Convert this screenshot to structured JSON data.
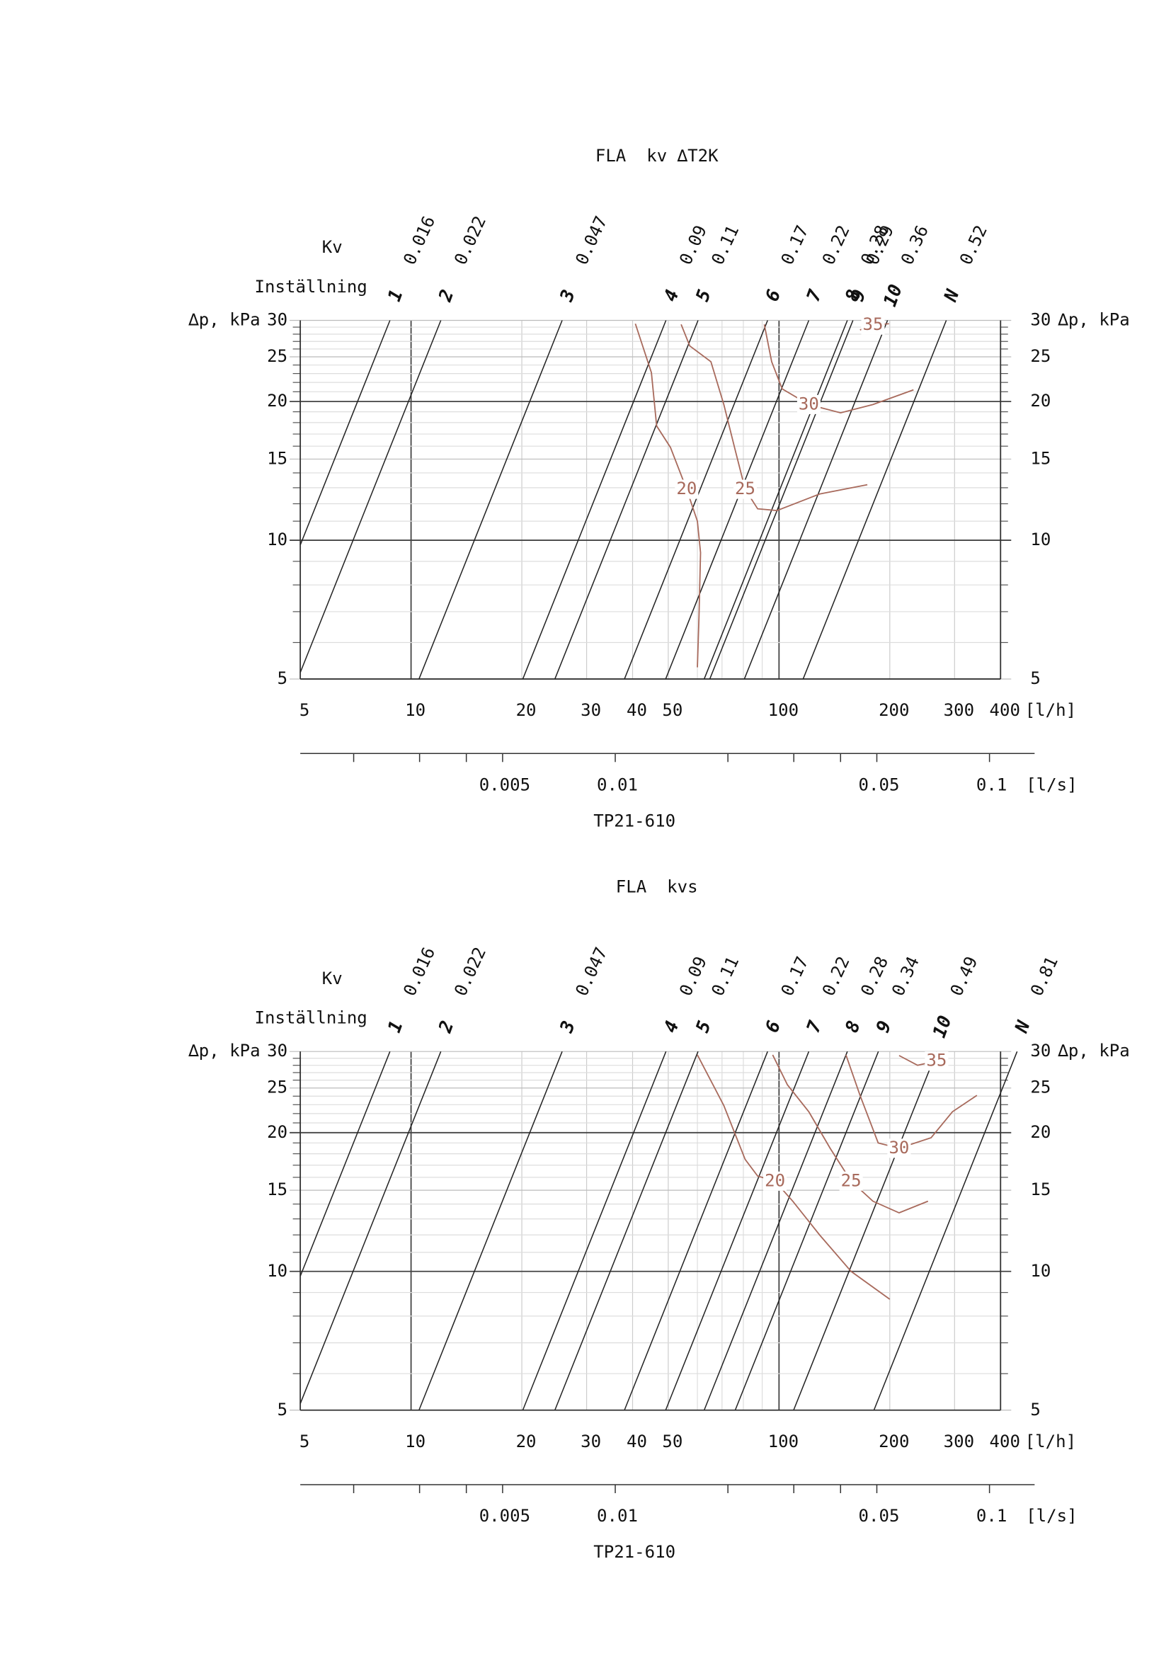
{
  "chart_data": [
    {
      "type": "nomogram",
      "title": "FLA  kv ∆T2K",
      "kv_label": "Kv",
      "setting_label": "Inställning",
      "kv": [
        0.016,
        0.022,
        0.047,
        0.09,
        0.11,
        0.17,
        0.22,
        0.28,
        0.29,
        0.36,
        0.52
      ],
      "settings": [
        1,
        2,
        3,
        4,
        5,
        6,
        7,
        8,
        9,
        10,
        "N"
      ],
      "y_label": "∆p, kPa",
      "log_scale": true,
      "xlim": [
        5,
        400
      ],
      "xticks": [
        5,
        10,
        20,
        30,
        40,
        50,
        100,
        200,
        300,
        400
      ],
      "xminor": [
        60,
        70,
        80,
        90
      ],
      "x_major_grid": [
        10,
        100
      ],
      "x_unit": "[l/h]",
      "ylim": [
        5,
        30
      ],
      "yticks": [
        5,
        10,
        15,
        20,
        25,
        30
      ],
      "yminor": [
        6,
        7,
        8,
        9,
        11,
        12,
        13,
        14,
        16,
        17,
        18,
        19,
        21,
        22,
        23,
        24,
        26,
        27,
        28,
        29
      ],
      "y_major_grid": [
        10,
        20
      ],
      "x2lim": [
        0.00144,
        0.132
      ],
      "x2ticks": [
        0.005,
        0.01,
        0.05,
        0.1
      ],
      "x2minor": [
        0.002,
        0.003,
        0.004,
        0.02,
        0.03,
        0.04
      ],
      "x2_unit": "[l/s]",
      "footer": "TP21-610",
      "line_color": "#222222",
      "curve_color": "#a86a5c",
      "series": [
        {
          "name": "20",
          "x": [
            40.7,
            45.0,
            46.5,
            50.7,
            56.1,
            60.0,
            61.2,
            60.6,
            60.0
          ],
          "values": [
            29.5,
            23.1,
            17.7,
            15.9,
            12.9,
            11.0,
            9.4,
            6.8,
            5.3
          ]
        },
        {
          "name": "25",
          "x": [
            54.2,
            57.2,
            65.3,
            70.8,
            75.7,
            80.9,
            87.5,
            98.8,
            128.9,
            173.8
          ],
          "values": [
            29.4,
            26.4,
            24.4,
            19.7,
            15.9,
            12.9,
            11.7,
            11.6,
            12.6,
            13.2
          ]
        },
        {
          "name": "30",
          "x": [
            91.2,
            95.5,
            102,
            120.5,
            147,
            180,
            232
          ],
          "values": [
            29.4,
            24.4,
            21.3,
            19.7,
            18.9,
            19.7,
            21.2
          ]
        },
        {
          "name": "35",
          "x": [
            166,
            180,
            199
          ],
          "values": [
            28.6,
            29.3,
            29.5
          ]
        }
      ]
    },
    {
      "type": "nomogram",
      "title": "FLA  kvs",
      "kv_label": "Kv",
      "setting_label": "Inställning",
      "kv": [
        0.016,
        0.022,
        0.047,
        0.09,
        0.11,
        0.17,
        0.22,
        0.28,
        0.34,
        0.49,
        0.81
      ],
      "settings": [
        1,
        2,
        3,
        4,
        5,
        6,
        7,
        8,
        9,
        10,
        "N"
      ],
      "y_label": "∆p, kPa",
      "log_scale": true,
      "xlim": [
        5,
        400
      ],
      "xticks": [
        5,
        10,
        20,
        30,
        40,
        50,
        100,
        200,
        300,
        400
      ],
      "xminor": [
        60,
        70,
        80,
        90
      ],
      "x_major_grid": [
        10,
        100
      ],
      "x_unit": "[l/h]",
      "ylim": [
        5,
        30
      ],
      "yticks": [
        5,
        10,
        15,
        20,
        25,
        30
      ],
      "yminor": [
        6,
        7,
        8,
        9,
        11,
        12,
        13,
        14,
        16,
        17,
        18,
        19,
        21,
        22,
        23,
        24,
        26,
        27,
        28,
        29
      ],
      "y_major_grid": [
        10,
        20
      ],
      "x2lim": [
        0.00144,
        0.132
      ],
      "x2ticks": [
        0.005,
        0.01,
        0.05,
        0.1
      ],
      "x2minor": [
        0.002,
        0.003,
        0.004,
        0.02,
        0.03,
        0.04
      ],
      "x2_unit": "[l/s]",
      "footer": "TP21-610",
      "line_color": "#222222",
      "curve_color": "#a86a5c",
      "series": [
        {
          "name": "20",
          "x": [
            60.0,
            70.8,
            80.9,
            87.5,
            97.5,
            109,
            128.9,
            157,
            200
          ],
          "values": [
            29.5,
            22.9,
            17.5,
            16.1,
            15.7,
            14.2,
            12.0,
            10.0,
            8.7
          ]
        },
        {
          "name": "25",
          "x": [
            96.1,
            105.4,
            120.5,
            137.7,
            157,
            180,
            212,
            254
          ],
          "values": [
            29.5,
            25.4,
            22.2,
            18.5,
            15.7,
            14.2,
            13.4,
            14.2
          ]
        },
        {
          "name": "30",
          "x": [
            152,
            166,
            186,
            212,
            259,
            296,
            345
          ],
          "values": [
            29.5,
            24.1,
            19.0,
            18.5,
            19.5,
            22.2,
            24.1
          ]
        },
        {
          "name": "35",
          "x": [
            212,
            238,
            268,
            286
          ],
          "values": [
            29.4,
            28.0,
            28.6,
            29.5
          ]
        }
      ]
    }
  ]
}
